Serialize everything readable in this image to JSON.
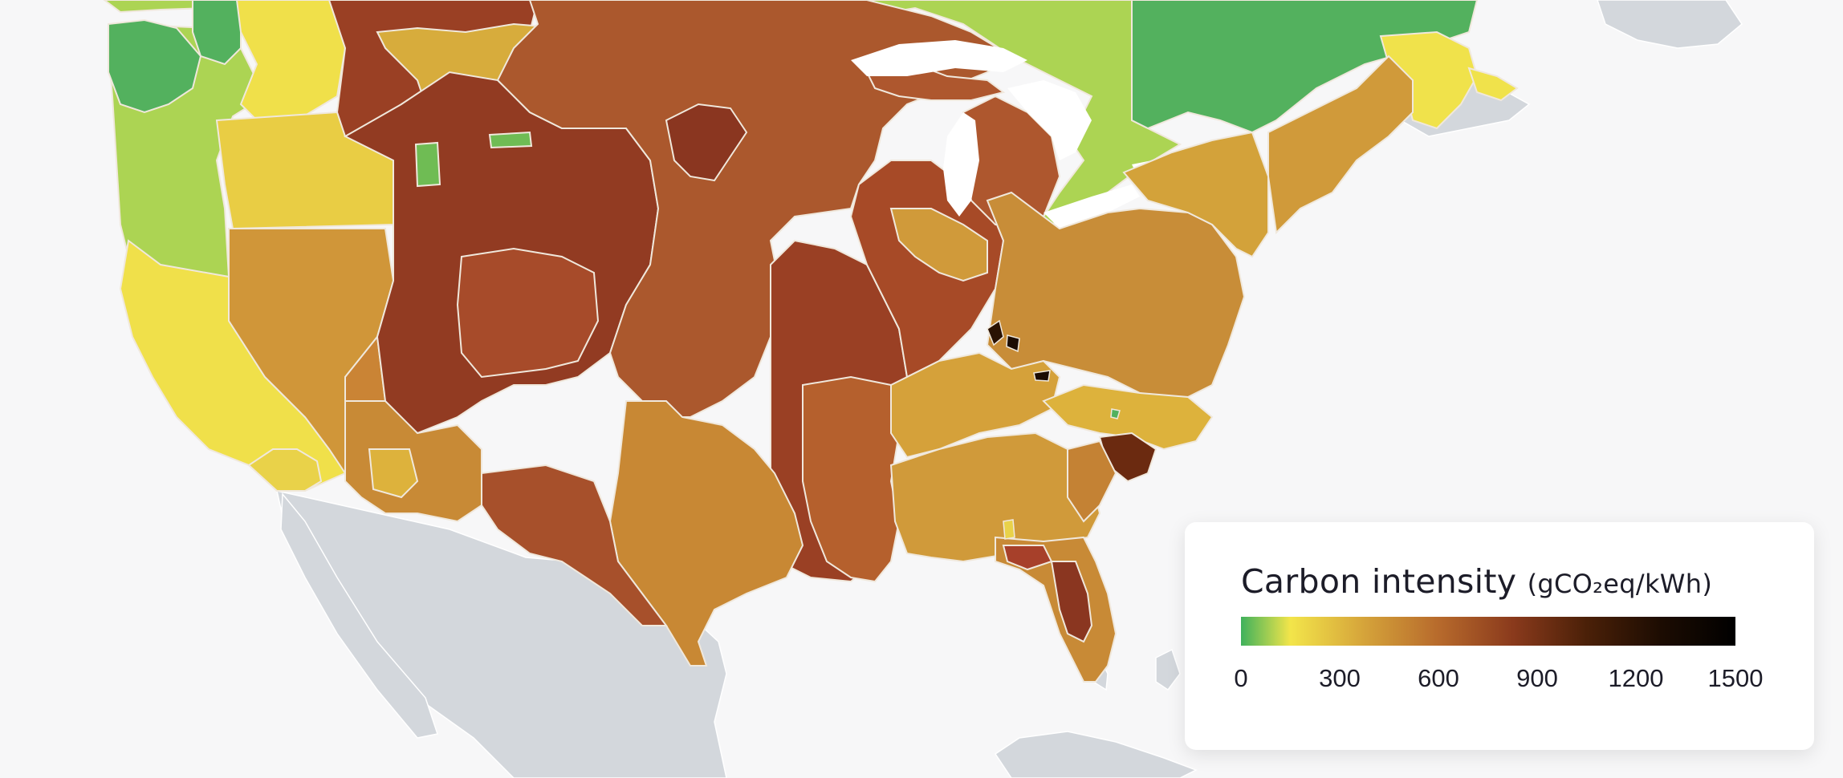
{
  "legend": {
    "title": "Carbon intensity",
    "unit": "(gCO₂eq/kWh)",
    "ticks": [
      "0",
      "300",
      "600",
      "900",
      "1200",
      "1500"
    ],
    "gradient": [
      "#3fb15c",
      "#f3e54a",
      "#d5a33a",
      "#b76a2c",
      "#8a3a1c",
      "#4a2008",
      "#000000"
    ]
  },
  "colors": {
    "background": "#f7f7f8",
    "water": "#ffffff",
    "no_data_land": "#d3d7dc",
    "region_border": "#f0e8dc"
  },
  "regions": [
    {
      "name": "quebec-region",
      "color": "#53b15e"
    },
    {
      "name": "ontario-region",
      "color": "#acd453"
    },
    {
      "name": "new-brunswick-region",
      "color": "#f0e24b"
    },
    {
      "name": "northwest-region",
      "color": "#acd453"
    },
    {
      "name": "california-region",
      "color": "#f0e04a"
    },
    {
      "name": "mountain-region",
      "color": "#d09639"
    },
    {
      "name": "rockies-region",
      "color": "#923b22"
    },
    {
      "name": "plains-region",
      "color": "#ab582d"
    },
    {
      "name": "midwest-region",
      "color": "#9a4024"
    },
    {
      "name": "michigan-region",
      "color": "#ae572e"
    },
    {
      "name": "pjm-region",
      "color": "#c88d38"
    },
    {
      "name": "northeast-region",
      "color": "#d3a23a"
    },
    {
      "name": "southeast-region",
      "color": "#d09a3a"
    },
    {
      "name": "carolinas-region",
      "color": "#ddb23c"
    },
    {
      "name": "south-carolina-region",
      "color": "#6b2a10"
    },
    {
      "name": "texas-region",
      "color": "#c88834"
    },
    {
      "name": "florida-region",
      "color": "#c88a36"
    }
  ]
}
